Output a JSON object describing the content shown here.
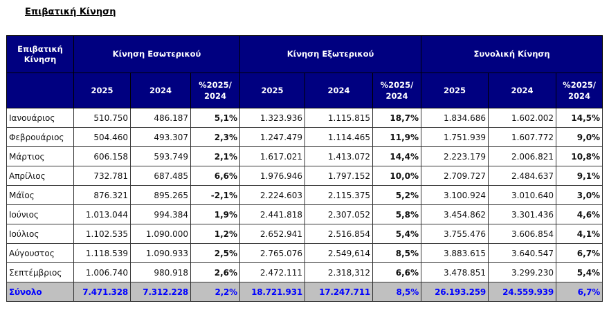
{
  "title": "Επιβατική Κίνηση",
  "header": {
    "corner": "Επιβατική Κίνηση",
    "groups": [
      "Κίνηση Εσωτερικού",
      "Κίνηση Εξωτερικού",
      "Συνολική Κίνηση"
    ],
    "subcols": [
      "2025",
      "2024",
      "%2025/ 2024"
    ]
  },
  "rows": [
    [
      "Ιανουάριος",
      "510.750",
      "486.187",
      "5,1%",
      "1.323.936",
      "1.115.815",
      "18,7%",
      "1.834.686",
      "1.602.002",
      "14,5%"
    ],
    [
      "Φεβρουάριος",
      "504.460",
      "493.307",
      "2,3%",
      "1.247.479",
      "1.114.465",
      "11,9%",
      "1.751.939",
      "1.607.772",
      "9,0%"
    ],
    [
      "Μάρτιος",
      "606.158",
      "593.749",
      "2,1%",
      "1.617.021",
      "1.413.072",
      "14,4%",
      "2.223.179",
      "2.006.821",
      "10,8%"
    ],
    [
      "Απρίλιος",
      "732.781",
      "687.485",
      "6,6%",
      "1.976.946",
      "1.797.152",
      "10,0%",
      "2.709.727",
      "2.484.637",
      "9,1%"
    ],
    [
      "Μάϊος",
      "876.321",
      "895.265",
      "-2,1%",
      "2.224.603",
      "2.115.375",
      "5,2%",
      "3.100.924",
      "3.010.640",
      "3,0%"
    ],
    [
      "Ιούνιος",
      "1.013.044",
      "994.384",
      "1,9%",
      "2.441.818",
      "2.307.052",
      "5,8%",
      "3.454.862",
      "3.301.436",
      "4,6%"
    ],
    [
      "Ιούλιος",
      "1.102.535",
      "1.090.000",
      "1,2%",
      "2.652.941",
      "2.516.854",
      "5,4%",
      "3.755.476",
      "3.606.854",
      "4,1%"
    ],
    [
      "Αύγουστος",
      "1.118.539",
      "1.090.933",
      "2,5%",
      "2.765.076",
      "2.549,614",
      "8,5%",
      "3.883.615",
      "3.640.547",
      "6,7%"
    ],
    [
      "Σεπτέμβριος",
      "1.006.740",
      "980.918",
      "2,6%",
      "2.472.111",
      "2.318,312",
      "6,6%",
      "3.478.851",
      "3.299.230",
      "5,4%"
    ]
  ],
  "total": [
    "Σύνολο",
    "7.471.328",
    "7.312.228",
    "2,2%",
    "18.721.931",
    "17.247.711",
    "8,5%",
    "26.193.259",
    "24.559.939",
    "6,7%"
  ],
  "colors": {
    "header_bg": "#000080",
    "total_bg": "#c0c0c0",
    "total_text": "#0000ff"
  }
}
